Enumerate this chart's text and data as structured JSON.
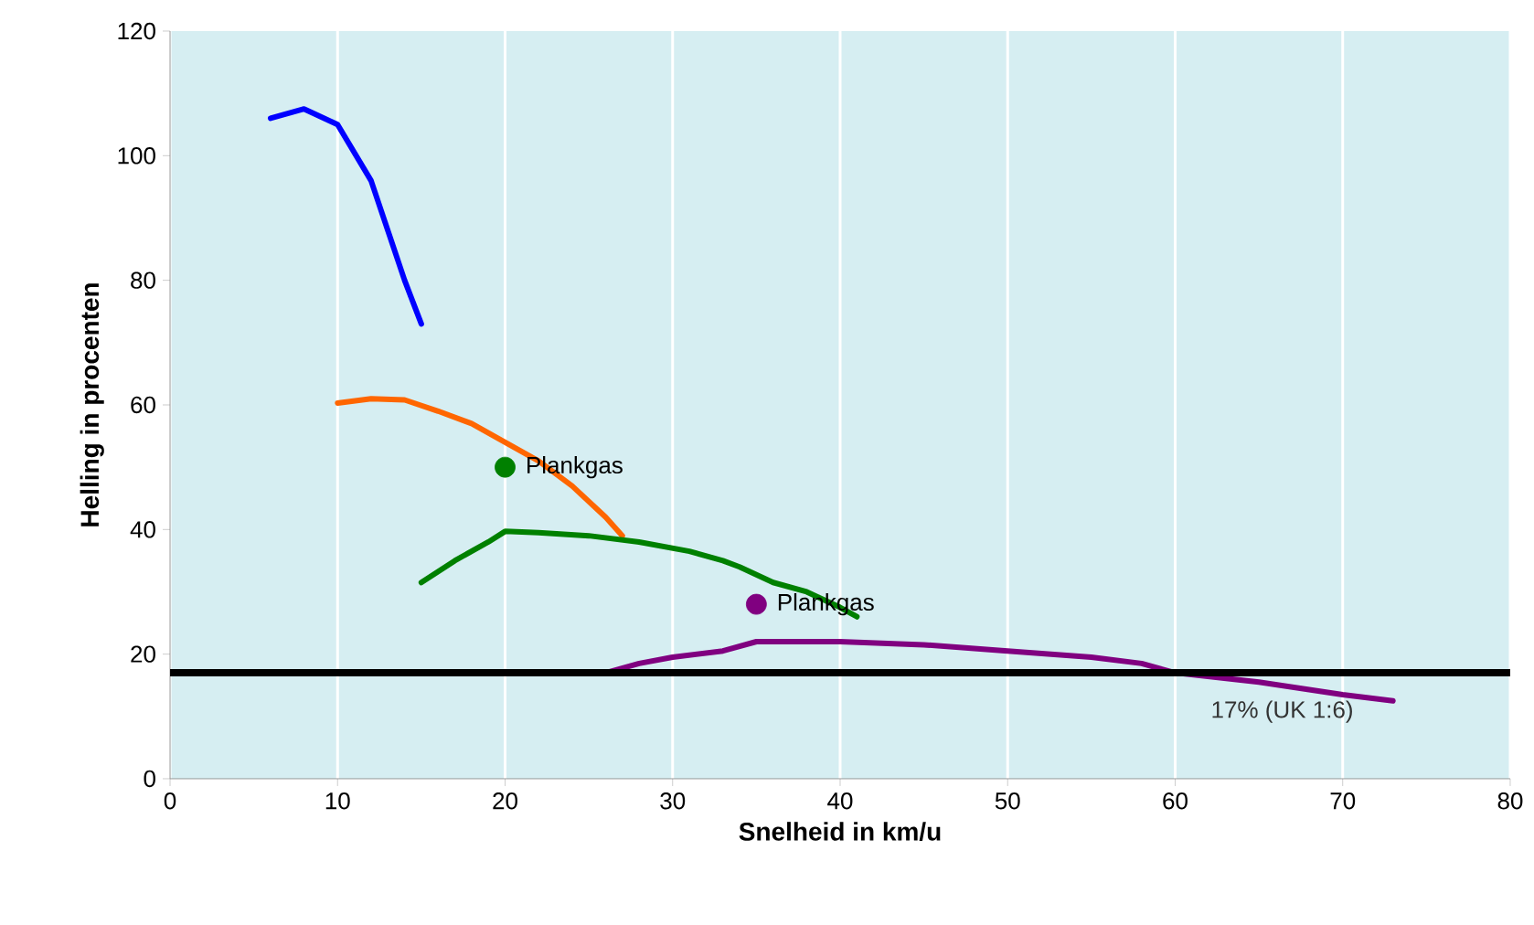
{
  "chart_data": {
    "type": "line",
    "xlabel": "Snelheid in km/u",
    "ylabel": "Helling in procenten",
    "xlim": [
      0,
      80
    ],
    "xticks": [
      0,
      10,
      20,
      30,
      40,
      50,
      60,
      70,
      80
    ],
    "ylim": [
      0,
      120
    ],
    "yticks": [
      0,
      20,
      40,
      60,
      80,
      100,
      120
    ],
    "grid": "x",
    "line_style": "solid",
    "series": [
      {
        "color": "#0000ff",
        "x": [
          6,
          8,
          10,
          12,
          13,
          14,
          15
        ],
        "values": [
          106,
          107.5,
          105,
          96,
          88,
          80,
          73
        ]
      },
      {
        "color": "#ff6600",
        "x": [
          10,
          12,
          14,
          16,
          18,
          20,
          22,
          24,
          26,
          27
        ],
        "values": [
          60.3,
          61,
          60.8,
          59,
          57,
          54,
          51,
          47,
          42,
          39
        ]
      },
      {
        "color": "#008000",
        "x": [
          15,
          17,
          19,
          20,
          22,
          25,
          28,
          31,
          33,
          34,
          36,
          38,
          40,
          41
        ],
        "values": [
          31.5,
          35,
          38,
          39.7,
          39.5,
          39,
          38,
          36.5,
          35,
          34,
          31.5,
          30,
          27.5,
          26
        ]
      },
      {
        "color": "#800080",
        "x": [
          26,
          28,
          30,
          33,
          35,
          40,
          45,
          50,
          55,
          58,
          60,
          65,
          70,
          73
        ],
        "values": [
          17,
          18.5,
          19.5,
          20.5,
          22,
          22,
          21.5,
          20.5,
          19.5,
          18.5,
          17,
          15.5,
          13.5,
          12.5
        ]
      },
      {
        "type": "scatter",
        "name": "Plankgas",
        "color": "#008000",
        "x": [
          20
        ],
        "values": [
          50
        ]
      },
      {
        "type": "scatter",
        "name": "Plankgas",
        "color": "#800080",
        "x": [
          35
        ],
        "values": [
          28
        ]
      }
    ],
    "ref_lines": [
      {
        "axis": "y",
        "value": 17,
        "label": "17% (UK 1:6)",
        "color": "#000000",
        "line_style": "solid"
      }
    ]
  }
}
